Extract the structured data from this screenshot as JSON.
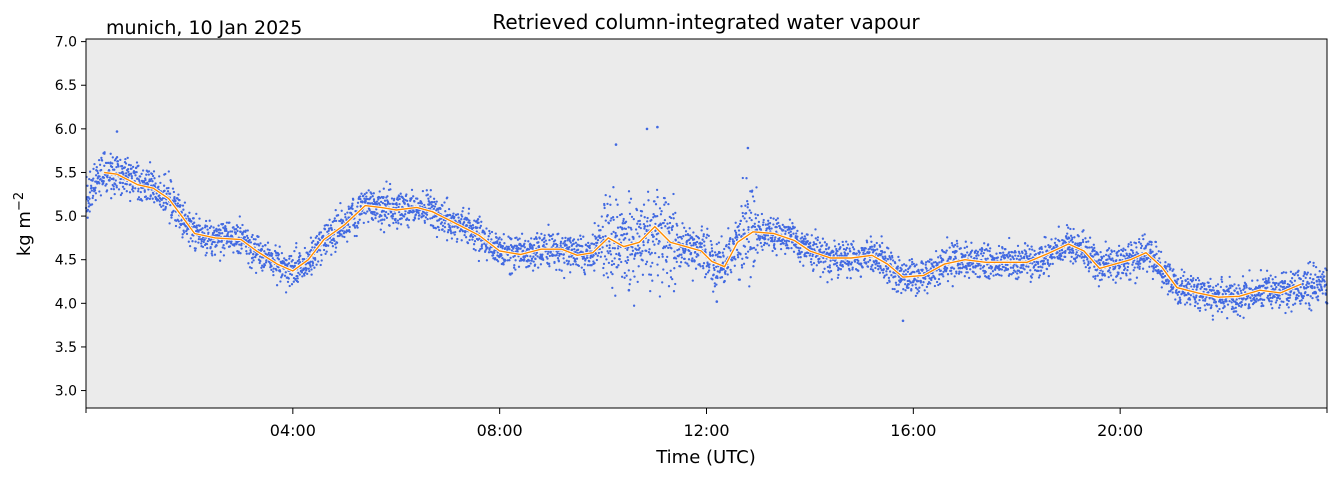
{
  "chart_data": {
    "type": "scatter",
    "title": "Retrieved column-integrated water vapour",
    "subtitle": "munich, 10 Jan 2025",
    "xlabel": "Time (UTC)",
    "ylabel": "kg m−2",
    "ylabel_base": "kg m",
    "ylabel_sup": "−2",
    "xlim_hours": [
      0,
      24
    ],
    "ylim": [
      2.8,
      7.03
    ],
    "x_ticks": [
      {
        "hour": 4,
        "label": "04:00"
      },
      {
        "hour": 8,
        "label": "08:00"
      },
      {
        "hour": 12,
        "label": "12:00"
      },
      {
        "hour": 16,
        "label": "16:00"
      },
      {
        "hour": 20,
        "label": "20:00"
      }
    ],
    "x_minor_ticks_hours": [
      0,
      24
    ],
    "y_ticks": [
      3.0,
      3.5,
      4.0,
      4.5,
      5.0,
      5.5,
      6.0,
      6.5,
      7.0
    ],
    "y_tick_labels": [
      "3.0",
      "3.5",
      "4.0",
      "4.5",
      "5.0",
      "5.5",
      "6.0",
      "6.5",
      "7.0"
    ],
    "background": "#ebebeb",
    "grid": false,
    "legend": "none",
    "series": [
      {
        "kind": "scatter",
        "color": "#4169e1",
        "smoothed_center": [
          [
            0.0,
            5.15
          ],
          [
            0.1,
            5.3
          ],
          [
            0.35,
            5.48
          ],
          [
            0.6,
            5.48
          ],
          [
            1.0,
            5.36
          ],
          [
            1.3,
            5.33
          ],
          [
            1.6,
            5.2
          ],
          [
            1.85,
            5.0
          ],
          [
            2.1,
            4.8
          ],
          [
            2.5,
            4.75
          ],
          [
            3.0,
            4.73
          ],
          [
            3.3,
            4.6
          ],
          [
            3.7,
            4.45
          ],
          [
            4.0,
            4.37
          ],
          [
            4.3,
            4.5
          ],
          [
            4.6,
            4.73
          ],
          [
            5.0,
            4.9
          ],
          [
            5.4,
            5.12
          ],
          [
            5.7,
            5.1
          ],
          [
            6.0,
            5.07
          ],
          [
            6.4,
            5.1
          ],
          [
            6.7,
            5.05
          ],
          [
            7.2,
            4.9
          ],
          [
            7.6,
            4.78
          ],
          [
            8.0,
            4.6
          ],
          [
            8.4,
            4.56
          ],
          [
            8.8,
            4.62
          ],
          [
            9.2,
            4.62
          ],
          [
            9.5,
            4.55
          ],
          [
            9.8,
            4.58
          ],
          [
            10.1,
            4.75
          ],
          [
            10.4,
            4.65
          ],
          [
            10.7,
            4.7
          ],
          [
            11.0,
            4.88
          ],
          [
            11.3,
            4.7
          ],
          [
            11.6,
            4.65
          ],
          [
            11.9,
            4.6
          ],
          [
            12.1,
            4.48
          ],
          [
            12.35,
            4.42
          ],
          [
            12.6,
            4.7
          ],
          [
            12.9,
            4.82
          ],
          [
            13.3,
            4.8
          ],
          [
            13.7,
            4.72
          ],
          [
            14.0,
            4.6
          ],
          [
            14.4,
            4.52
          ],
          [
            14.8,
            4.52
          ],
          [
            15.2,
            4.55
          ],
          [
            15.5,
            4.45
          ],
          [
            15.8,
            4.3
          ],
          [
            16.2,
            4.32
          ],
          [
            16.6,
            4.45
          ],
          [
            17.0,
            4.5
          ],
          [
            17.4,
            4.47
          ],
          [
            17.8,
            4.47
          ],
          [
            18.2,
            4.47
          ],
          [
            18.6,
            4.57
          ],
          [
            19.0,
            4.68
          ],
          [
            19.3,
            4.6
          ],
          [
            19.6,
            4.4
          ],
          [
            19.9,
            4.45
          ],
          [
            20.2,
            4.5
          ],
          [
            20.5,
            4.58
          ],
          [
            20.8,
            4.42
          ],
          [
            21.1,
            4.18
          ],
          [
            21.5,
            4.12
          ],
          [
            21.9,
            4.07
          ],
          [
            22.3,
            4.08
          ],
          [
            22.7,
            4.15
          ],
          [
            23.1,
            4.12
          ],
          [
            23.5,
            4.2
          ],
          [
            24.0,
            4.2
          ]
        ],
        "spikes": [
          [
            0.6,
            5.97
          ],
          [
            10.25,
            5.82
          ],
          [
            10.85,
            6.0
          ],
          [
            11.05,
            6.02
          ],
          [
            12.8,
            5.78
          ],
          [
            15.8,
            3.8
          ],
          [
            12.2,
            4.02
          ],
          [
            10.5,
            4.15
          ],
          [
            24.0,
            4.0
          ]
        ]
      },
      {
        "kind": "line",
        "color": "#ff8c00",
        "x_hours": [
          0.35,
          0.6,
          1.0,
          1.3,
          1.6,
          1.85,
          2.1,
          2.5,
          3.0,
          3.3,
          3.7,
          4.0,
          4.3,
          4.6,
          5.0,
          5.4,
          5.7,
          6.0,
          6.4,
          6.7,
          7.2,
          7.6,
          8.0,
          8.4,
          8.8,
          9.2,
          9.5,
          9.8,
          10.1,
          10.4,
          10.7,
          11.0,
          11.3,
          11.6,
          11.9,
          12.1,
          12.35,
          12.6,
          12.9,
          13.3,
          13.7,
          14.0,
          14.4,
          14.8,
          15.2,
          15.5,
          15.8,
          16.2,
          16.6,
          17.0,
          17.4,
          17.8,
          18.2,
          18.6,
          19.0,
          19.3,
          19.6,
          19.9,
          20.2,
          20.5,
          20.8,
          21.1,
          21.5,
          21.9,
          22.3,
          22.7,
          23.1,
          23.5
        ],
        "values": [
          5.5,
          5.48,
          5.36,
          5.32,
          5.2,
          5.0,
          4.8,
          4.75,
          4.73,
          4.6,
          4.45,
          4.37,
          4.5,
          4.73,
          4.9,
          5.12,
          5.1,
          5.07,
          5.1,
          5.05,
          4.9,
          4.78,
          4.6,
          4.56,
          4.62,
          4.62,
          4.55,
          4.58,
          4.75,
          4.65,
          4.7,
          4.88,
          4.7,
          4.65,
          4.6,
          4.48,
          4.42,
          4.7,
          4.82,
          4.8,
          4.72,
          4.6,
          4.52,
          4.52,
          4.55,
          4.45,
          4.3,
          4.32,
          4.45,
          4.5,
          4.47,
          4.47,
          4.47,
          4.57,
          4.68,
          4.6,
          4.4,
          4.45,
          4.5,
          4.58,
          4.42,
          4.18,
          4.12,
          4.07,
          4.08,
          4.15,
          4.12,
          4.22
        ]
      }
    ]
  }
}
